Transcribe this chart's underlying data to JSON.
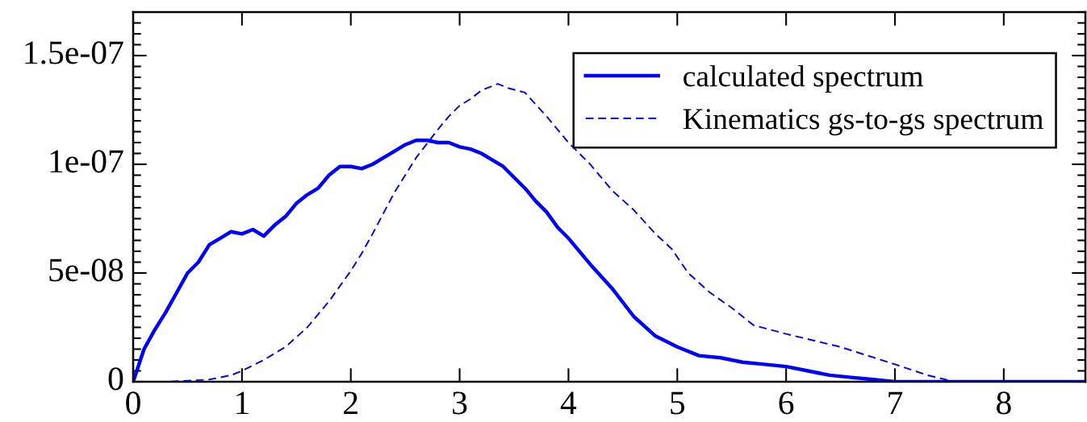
{
  "chart_data": {
    "type": "line",
    "xlim": [
      0,
      8.75
    ],
    "ylim": [
      0,
      1.7e-07
    ],
    "xticks": [
      0,
      1,
      2,
      3,
      4,
      5,
      6,
      7,
      8
    ],
    "yticks": [
      0,
      {
        "value": 5e-08,
        "label": "5e-08"
      },
      {
        "value": 1e-07,
        "label": "1e-07"
      },
      {
        "value": 1.5e-07,
        "label": "1.5e-07"
      }
    ],
    "grid": false,
    "legend": "top right",
    "marker": "none",
    "series": [
      {
        "name": "calculated spectrum",
        "color": "#0000ff",
        "line_style": "solid",
        "x": [
          0,
          0.1,
          0.2,
          0.3,
          0.5,
          0.6,
          0.7,
          0.8,
          0.9,
          1.0,
          1.1,
          1.2,
          1.3,
          1.4,
          1.5,
          1.6,
          1.7,
          1.8,
          1.9,
          2.0,
          2.1,
          2.2,
          2.3,
          2.4,
          2.5,
          2.6,
          2.7,
          2.8,
          2.9,
          3.0,
          3.1,
          3.2,
          3.3,
          3.4,
          3.5,
          3.6,
          3.7,
          3.8,
          3.9,
          4.0,
          4.2,
          4.4,
          4.6,
          4.8,
          5.0,
          5.2,
          5.4,
          5.6,
          5.8,
          6.0,
          6.2,
          6.4,
          6.6,
          6.8,
          7.0,
          7.3,
          7.6,
          8.75
        ],
        "values": [
          0,
          1.5e-08,
          2.4e-08,
          3.2e-08,
          5e-08,
          5.5e-08,
          6.3e-08,
          6.6e-08,
          6.9e-08,
          6.8e-08,
          7e-08,
          6.7e-08,
          7.2e-08,
          7.6e-08,
          8.2e-08,
          8.6e-08,
          8.9e-08,
          9.5e-08,
          9.9e-08,
          9.9e-08,
          9.8e-08,
          1e-07,
          1.03e-07,
          1.06e-07,
          1.09e-07,
          1.11e-07,
          1.11e-07,
          1.1e-07,
          1.1e-07,
          1.08e-07,
          1.07e-07,
          1.05e-07,
          1.02e-07,
          9.9e-08,
          9.4e-08,
          8.9e-08,
          8.3e-08,
          7.8e-08,
          7.1e-08,
          6.6e-08,
          5.4e-08,
          4.3e-08,
          3e-08,
          2.1e-08,
          1.6e-08,
          1.2e-08,
          1.1e-08,
          9e-09,
          8e-09,
          7e-09,
          5e-09,
          3e-09,
          2e-09,
          1e-09,
          0,
          0,
          0,
          0
        ]
      },
      {
        "name": "Kinematics gs-to-gs spectrum",
        "color": "#0000ff",
        "line_style": "dashed",
        "x": [
          0,
          0.3,
          0.7,
          0.9,
          1.0,
          1.2,
          1.4,
          1.6,
          1.8,
          2.0,
          2.1,
          2.2,
          2.4,
          2.6,
          2.8,
          2.9,
          3.0,
          3.1,
          3.2,
          3.3,
          3.35,
          3.45,
          3.6,
          3.8,
          4.0,
          4.2,
          4.4,
          4.6,
          4.8,
          4.95,
          5.1,
          5.3,
          5.5,
          5.7,
          6.0,
          6.5,
          7.0,
          7.3,
          7.55,
          7.6,
          8.75
        ],
        "values": [
          0,
          0,
          1e-09,
          3e-09,
          5e-09,
          1e-08,
          1.6e-08,
          2.5e-08,
          3.7e-08,
          5.1e-08,
          5.9e-08,
          6.8e-08,
          8.7e-08,
          1.03e-07,
          1.16e-07,
          1.22e-07,
          1.27e-07,
          1.3e-07,
          1.34e-07,
          1.36e-07,
          1.37e-07,
          1.35e-07,
          1.33e-07,
          1.22e-07,
          1.1e-07,
          1e-07,
          8.8e-08,
          7.9e-08,
          6.8e-08,
          6.1e-08,
          5e-08,
          4.1e-08,
          3.4e-08,
          2.6e-08,
          2.2e-08,
          1.6e-08,
          8e-09,
          3e-09,
          0,
          0,
          0
        ]
      }
    ]
  }
}
